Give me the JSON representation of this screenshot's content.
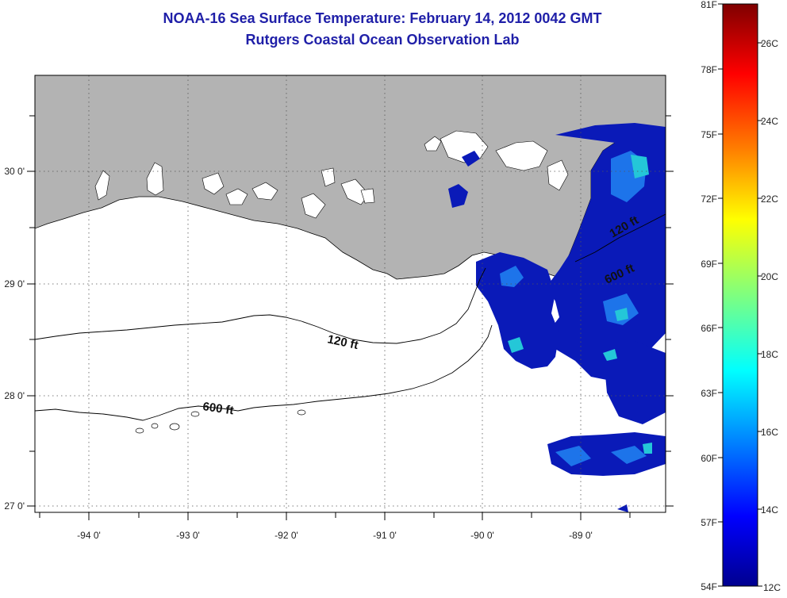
{
  "title": "NOAA-16 Sea Surface Temperature:  February 14, 2012 0042 GMT",
  "subtitle": "Rutgers Coastal Ocean Observation Lab",
  "map": {
    "lon_ticks": [
      "-94 0'",
      "-93 0'",
      "-92 0'",
      "-91 0'",
      "-90 0'",
      "-89 0'"
    ],
    "lat_ticks": [
      "30 0'",
      "29 0'",
      "28 0'",
      "27 0'"
    ],
    "contours": [
      "120 ft",
      "600 ft"
    ],
    "land_color": "#b3b3b3",
    "water_color": "#ffffff"
  },
  "colorbar": {
    "fahrenheit": [
      "81F",
      "78F",
      "75F",
      "72F",
      "69F",
      "66F",
      "63F",
      "60F",
      "57F",
      "54F"
    ],
    "celsius": [
      "26C",
      "24C",
      "22C",
      "20C",
      "18C",
      "16C",
      "14C",
      "12C"
    ],
    "colors": [
      "#7f0000",
      "#ff0000",
      "#ff7f00",
      "#ffff00",
      "#7fff7f",
      "#00ffff",
      "#007fff",
      "#0000ff",
      "#00008f"
    ]
  }
}
